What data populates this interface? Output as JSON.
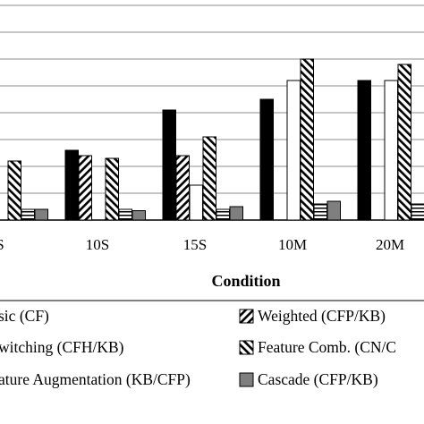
{
  "chart_data": {
    "type": "bar",
    "xlabel": "Condition",
    "categories": [
      "S",
      "10S",
      "15S",
      "10M",
      "20M"
    ],
    "series": [
      {
        "name": "sic (CF)",
        "pattern": "solid",
        "values": [
          null,
          0.26,
          0.41,
          0.45,
          0.52
        ]
      },
      {
        "name": "Weighted (CFP/KB)",
        "pattern": "hatch-fwd",
        "values": [
          null,
          0.24,
          0.24,
          null,
          null
        ]
      },
      {
        "name": "witching (CFH/KB)",
        "pattern": "white",
        "values": [
          null,
          null,
          0.13,
          0.52,
          0.52
        ]
      },
      {
        "name": "Feature Comb. (CN/C",
        "pattern": "hatch-back",
        "values": [
          0.22,
          0.23,
          0.31,
          0.6,
          0.58
        ]
      },
      {
        "name": "ature Augmentation (KB/CFP)",
        "pattern": "stripes",
        "values": [
          0.04,
          0.04,
          0.04,
          0.06,
          0.06
        ]
      },
      {
        "name": "Cascade (CFP/KB)",
        "pattern": "gray",
        "values": [
          0.04,
          0.035,
          0.05,
          0.07,
          0.07
        ]
      }
    ],
    "ylim": [
      0,
      0.8
    ],
    "grid": true,
    "legend_position": "bottom"
  }
}
